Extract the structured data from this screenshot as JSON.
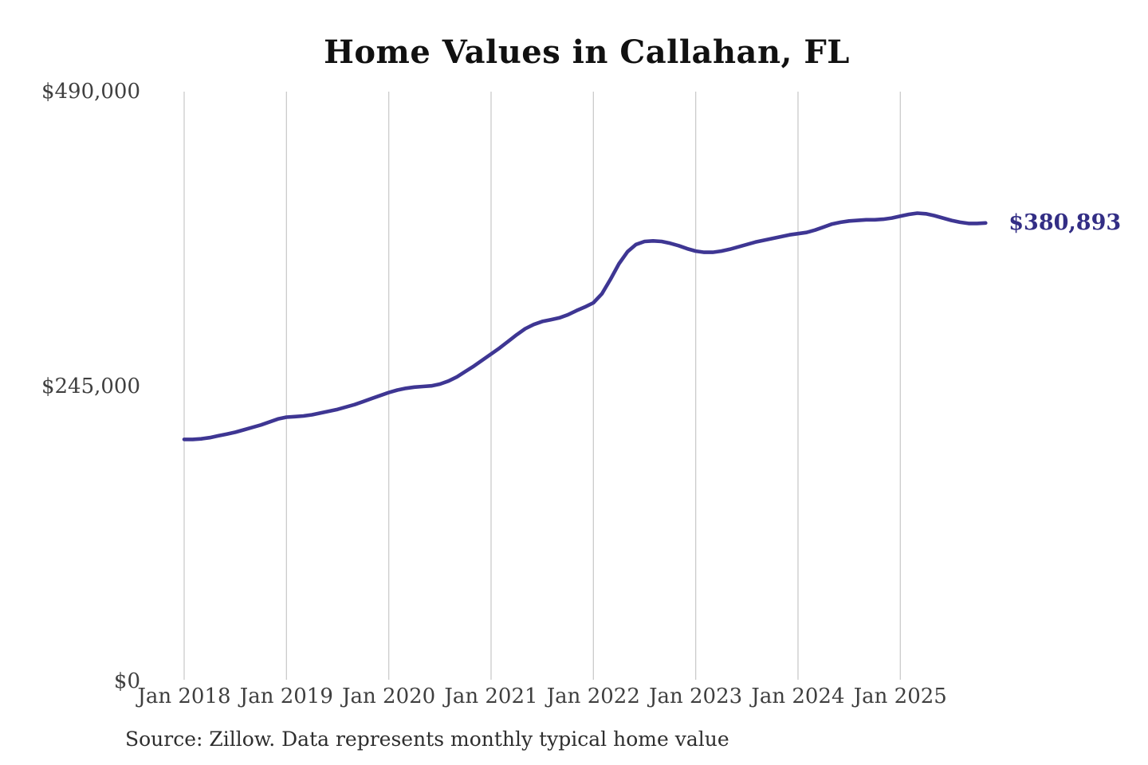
{
  "page": {
    "background": "#ffffff"
  },
  "chart": {
    "title": "Home Values in Callahan, FL",
    "source": "Source: Zillow. Data represents monthly typical home value"
  },
  "colors": {
    "gridline": "#cbcbcb",
    "axis_text": "#3f3f3f",
    "title_text": "#111111",
    "source_text": "#2e2e2e"
  },
  "chart_data": {
    "type": "line",
    "title": "Home Values in Callahan, FL",
    "xlabel": "",
    "ylabel": "",
    "ylim": [
      0,
      490000
    ],
    "grid": "vertical-only",
    "legend": "none",
    "line_color": "#3e3693",
    "end_label": "$380,893",
    "end_label_color": "#332e85",
    "latest_value": 380893,
    "y_ticks": [
      {
        "label": "$490,000",
        "value": 490000
      },
      {
        "label": "$245,000",
        "value": 245000
      },
      {
        "label": "$0",
        "value": 0
      }
    ],
    "x_tick_labels": [
      "Jan 2018",
      "Jan 2019",
      "Jan 2020",
      "Jan 2021",
      "Jan 2022",
      "Jan 2023",
      "Jan 2024",
      "Jan 2025"
    ],
    "x_tick_month_indices": [
      0,
      12,
      24,
      36,
      48,
      60,
      72,
      84
    ],
    "series": [
      {
        "name": "Monthly typical home value",
        "start_month": "2018-01",
        "end_month": "2025-11",
        "values": [
          201000,
          201000,
          201500,
          202500,
          204000,
          205500,
          207000,
          209000,
          211000,
          213000,
          215500,
          218000,
          219500,
          220000,
          220500,
          221500,
          223000,
          224500,
          226000,
          228000,
          230000,
          232500,
          235000,
          237500,
          240000,
          242000,
          243500,
          244500,
          245000,
          245500,
          247000,
          249500,
          253000,
          257500,
          262000,
          267000,
          272000,
          277000,
          282500,
          288000,
          293000,
          296500,
          299000,
          300500,
          302000,
          304500,
          308000,
          311000,
          314500,
          322000,
          334000,
          347000,
          357000,
          363000,
          365500,
          366000,
          365500,
          364000,
          362000,
          359500,
          357500,
          356500,
          356500,
          357500,
          359000,
          361000,
          363000,
          365000,
          366500,
          368000,
          369500,
          371000,
          372000,
          373000,
          375000,
          377500,
          380000,
          381500,
          382500,
          383000,
          383500,
          383500,
          384000,
          385000,
          386500,
          388000,
          389000,
          388500,
          387000,
          385000,
          383000,
          381500,
          380500,
          380500,
          380893
        ]
      }
    ]
  }
}
